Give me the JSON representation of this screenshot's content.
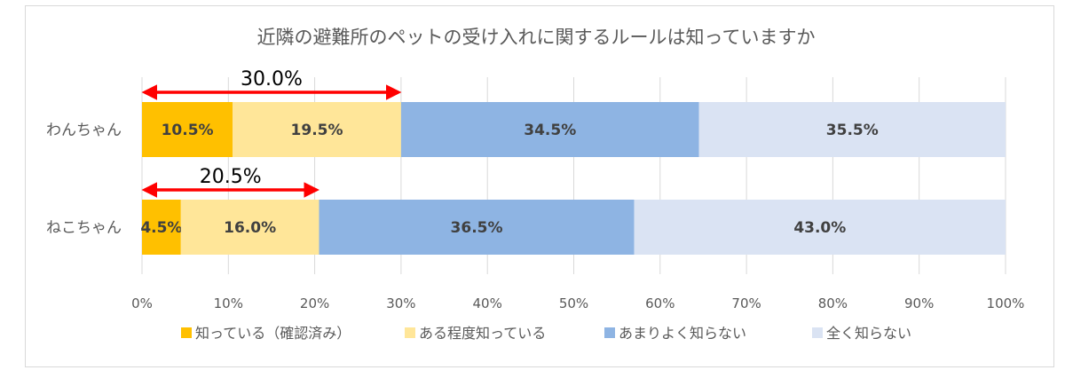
{
  "chart_data": {
    "type": "bar",
    "orientation": "horizontal",
    "stacked": true,
    "title": "近隣の避難所のペットの受け入れに関するルールは知っていますか",
    "categories": [
      "わんちゃん",
      "ねこちゃん"
    ],
    "series": [
      {
        "name": "知っている（確認済み）",
        "values": [
          10.5,
          4.5
        ],
        "labels": [
          "10.5%",
          "4.5%"
        ],
        "color": "#FFC000"
      },
      {
        "name": "ある程度知っている",
        "values": [
          19.5,
          16.0
        ],
        "labels": [
          "19.5%",
          "16.0%"
        ],
        "color": "#FFE699"
      },
      {
        "name": "あまりよく知らない",
        "values": [
          34.5,
          36.5
        ],
        "labels": [
          "34.5%",
          "36.5%"
        ],
        "color": "#8EB4E3"
      },
      {
        "name": "全く知らない",
        "values": [
          35.5,
          43.0
        ],
        "labels": [
          "35.5%",
          "43.0%"
        ],
        "color": "#DAE3F3"
      }
    ],
    "xlim": [
      0,
      100
    ],
    "x_ticks": [
      0,
      10,
      20,
      30,
      40,
      50,
      60,
      70,
      80,
      90,
      100
    ],
    "x_tick_labels": [
      "0%",
      "10%",
      "20%",
      "30%",
      "40%",
      "50%",
      "60%",
      "70%",
      "80%",
      "90%",
      "100%"
    ],
    "grid": true,
    "legend_position": "bottom",
    "annotations": [
      {
        "category": "わんちゃん",
        "from": 0,
        "to": 30.0,
        "text": "30.0%",
        "color": "#FF0000"
      },
      {
        "category": "ねこちゃん",
        "from": 0,
        "to": 20.5,
        "text": "20.5%",
        "color": "#FF0000"
      }
    ]
  }
}
